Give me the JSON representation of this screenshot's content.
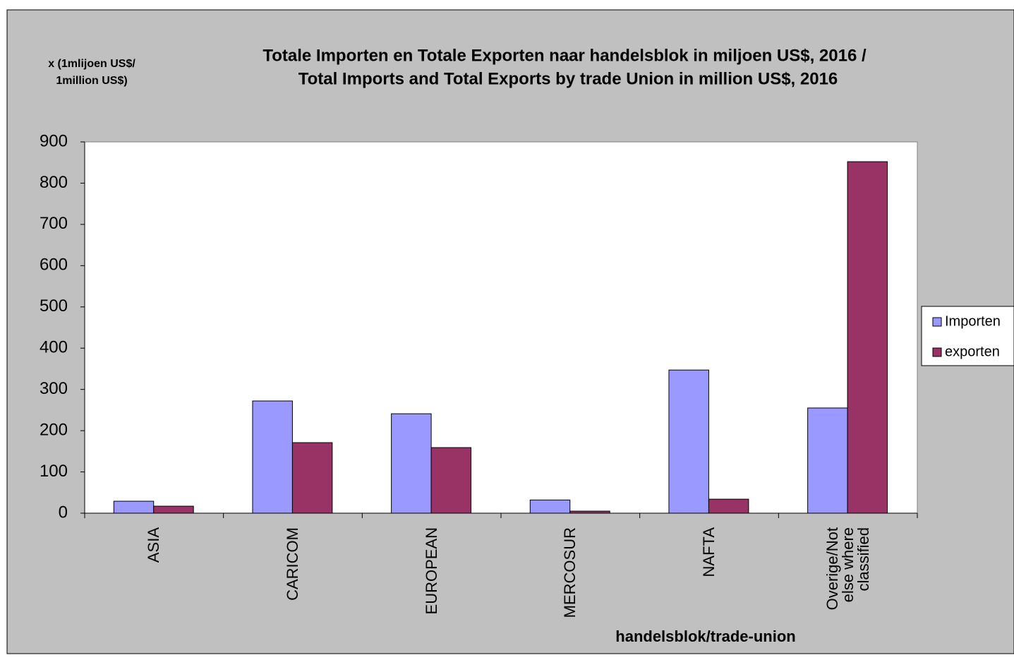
{
  "chart_data": {
    "type": "bar",
    "title": [
      "Totale Importen en Totale Exporten naar handelsblok in miljoen US$,  2016 /",
      "Total Imports and Total Exports by trade Union in million US$, 2016"
    ],
    "y_label": [
      "x (1mlijoen US$/",
      "1million US$)"
    ],
    "x_label": "handelsblok/trade-union",
    "categories": [
      "ASIA",
      "CARICOM",
      "EUROPEAN",
      "MERCOSUR",
      "NAFTA",
      "Overige/Not else where classified"
    ],
    "series": [
      {
        "name": "Importen",
        "color": "#9999ff",
        "values": [
          29,
          272,
          241,
          32,
          347,
          255
        ]
      },
      {
        "name": "exporten",
        "color": "#993366",
        "values": [
          17,
          171,
          159,
          5,
          34,
          852
        ]
      }
    ],
    "ylim": [
      0,
      900
    ],
    "yticks": [
      0,
      100,
      200,
      300,
      400,
      500,
      600,
      700,
      800,
      900
    ],
    "legend": "right",
    "grid": false
  }
}
